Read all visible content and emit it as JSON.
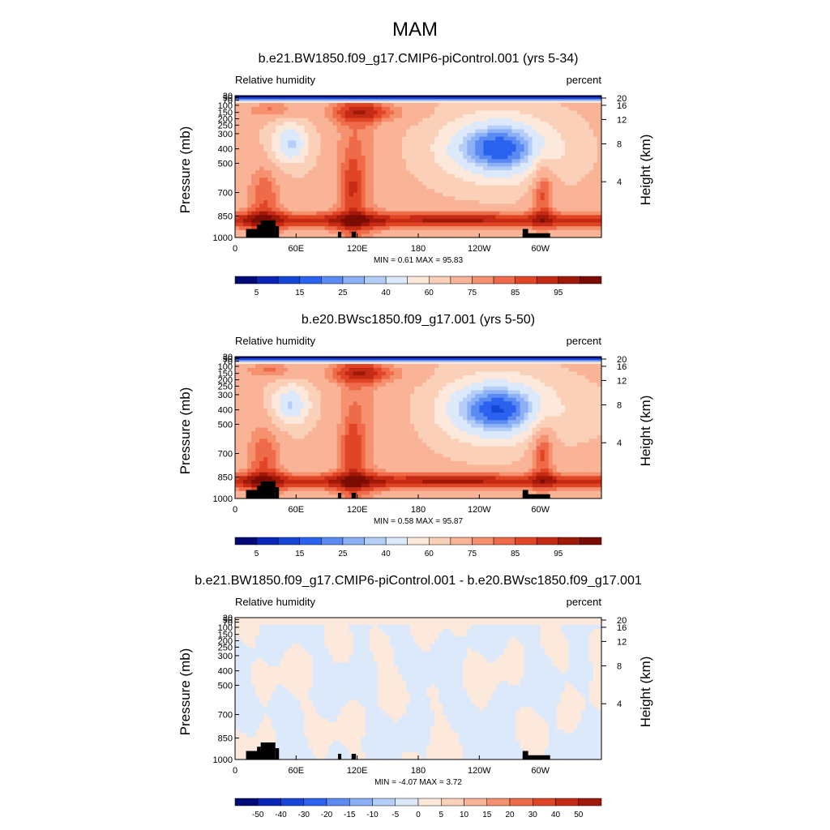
{
  "figure": {
    "title": "MAM"
  },
  "chart_data": [
    {
      "type": "heatmap",
      "title": "b.e21.BW1850.f09_g17.CMIP6-piControl.001 (yrs 5-34)",
      "left_label": "Relative humidity",
      "right_label": "percent",
      "ylabel": "Pressure (mb)",
      "ylabel_right": "Height (km)",
      "x_ticks": [
        "0",
        "60E",
        "120E",
        "180",
        "120W",
        "60W"
      ],
      "y_ticks": [
        "30",
        "50",
        "70",
        "100",
        "150",
        "200",
        "250",
        "300",
        "400",
        "500",
        "700",
        "850",
        "1000"
      ],
      "y_ticks_right": [
        "20",
        "16",
        "12",
        "8",
        "4"
      ],
      "stats": "MIN =   0.61  MAX =  95.83",
      "colorbar_labels": [
        "5",
        "15",
        "25",
        "40",
        "60",
        "75",
        "85",
        "95"
      ],
      "colorbar_colors": [
        "#020a78",
        "#0a26b8",
        "#1546d8",
        "#2b62f0",
        "#5a8af2",
        "#8cb0f5",
        "#b5cef8",
        "#dce9fb",
        "#fde9dc",
        "#fbd0b8",
        "#f9b397",
        "#f6916f",
        "#ef6a48",
        "#e04526",
        "#c52a14",
        "#a01808",
        "#7a0c04"
      ]
    },
    {
      "type": "heatmap",
      "title": "b.e20.BWsc1850.f09_g17.001 (yrs 5-50)",
      "left_label": "Relative humidity",
      "right_label": "percent",
      "ylabel": "Pressure (mb)",
      "ylabel_right": "Height (km)",
      "x_ticks": [
        "0",
        "60E",
        "120E",
        "180",
        "120W",
        "60W"
      ],
      "y_ticks": [
        "30",
        "50",
        "70",
        "100",
        "150",
        "200",
        "250",
        "300",
        "400",
        "500",
        "700",
        "850",
        "1000"
      ],
      "y_ticks_right": [
        "20",
        "16",
        "12",
        "8",
        "4"
      ],
      "stats": "MIN =   0.58  MAX =  95.87",
      "colorbar_labels": [
        "5",
        "15",
        "25",
        "40",
        "60",
        "75",
        "85",
        "95"
      ],
      "colorbar_colors": [
        "#020a78",
        "#0a26b8",
        "#1546d8",
        "#2b62f0",
        "#5a8af2",
        "#8cb0f5",
        "#b5cef8",
        "#dce9fb",
        "#fde9dc",
        "#fbd0b8",
        "#f9b397",
        "#f6916f",
        "#ef6a48",
        "#e04526",
        "#c52a14",
        "#a01808",
        "#7a0c04"
      ]
    },
    {
      "type": "heatmap",
      "title": "b.e21.BW1850.f09_g17.CMIP6-piControl.001 - b.e20.BWsc1850.f09_g17.001",
      "left_label": "Relative humidity",
      "right_label": "percent",
      "ylabel": "Pressure (mb)",
      "ylabel_right": "Height (km)",
      "x_ticks": [
        "0",
        "60E",
        "120E",
        "180",
        "120W",
        "60W"
      ],
      "y_ticks": [
        "30",
        "50",
        "70",
        "100",
        "150",
        "200",
        "250",
        "300",
        "400",
        "500",
        "700",
        "850",
        "1000"
      ],
      "y_ticks_right": [
        "20",
        "16",
        "12",
        "8",
        "4"
      ],
      "stats": "MIN =  -4.07  MAX =   3.72",
      "colorbar_labels": [
        "-50",
        "-40",
        "-30",
        "-20",
        "-15",
        "-10",
        "-5",
        "0",
        "5",
        "10",
        "15",
        "20",
        "30",
        "40",
        "50"
      ],
      "colorbar_colors": [
        "#020a78",
        "#0a26b8",
        "#1546d8",
        "#2b62f0",
        "#5a8af2",
        "#8cb0f5",
        "#b5cef8",
        "#dce9fb",
        "#fde9dc",
        "#fbd0b8",
        "#f9b397",
        "#f6916f",
        "#ef6a48",
        "#e04526",
        "#c52a14",
        "#a01808"
      ]
    }
  ]
}
